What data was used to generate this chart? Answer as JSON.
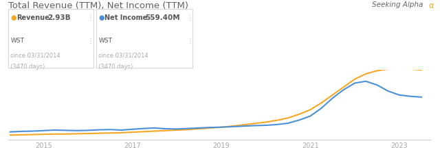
{
  "title": "Total Revenue (TTM), Net Income (TTM)",
  "seeking_alpha_text": "Seeking Alpha",
  "revenue_label": "Revenue",
  "revenue_value": "2.93B",
  "net_income_label": "Net Income",
  "net_income_value": "559.40M",
  "wst_label": "WST",
  "since_label": "since 03/31/2014",
  "days_label": "(3470 days)",
  "revenue_color": "#f5a623",
  "net_income_color": "#4a90d9",
  "background_color": "#ffffff",
  "title_color": "#606060",
  "legend_text_color": "#555555",
  "axis_color": "#cccccc",
  "tick_color": "#aaaaaa",
  "alpha_color": "#f5a623",
  "seeking_alpha_color": "#666666",
  "x_years": [
    2014.25,
    2014.5,
    2014.75,
    2015.0,
    2015.25,
    2015.5,
    2015.75,
    2016.0,
    2016.25,
    2016.5,
    2016.75,
    2017.0,
    2017.25,
    2017.5,
    2017.75,
    2018.0,
    2018.25,
    2018.5,
    2018.75,
    2019.0,
    2019.25,
    2019.5,
    2019.75,
    2020.0,
    2020.25,
    2020.5,
    2020.75,
    2021.0,
    2021.25,
    2021.5,
    2021.75,
    2022.0,
    2022.25,
    2022.5,
    2022.75,
    2023.0,
    2023.25,
    2023.5
  ],
  "revenue_data": [
    0.38,
    0.39,
    0.4,
    0.41,
    0.42,
    0.42,
    0.43,
    0.44,
    0.45,
    0.46,
    0.47,
    0.49,
    0.51,
    0.53,
    0.55,
    0.57,
    0.59,
    0.62,
    0.65,
    0.68,
    0.72,
    0.77,
    0.82,
    0.87,
    0.94,
    1.03,
    1.17,
    1.34,
    1.6,
    1.9,
    2.2,
    2.5,
    2.7,
    2.82,
    2.88,
    2.9,
    2.88,
    2.85
  ],
  "net_income_data": [
    0.5,
    0.52,
    0.53,
    0.55,
    0.57,
    0.56,
    0.55,
    0.56,
    0.58,
    0.59,
    0.57,
    0.6,
    0.63,
    0.65,
    0.62,
    0.61,
    0.63,
    0.65,
    0.67,
    0.68,
    0.7,
    0.72,
    0.74,
    0.75,
    0.78,
    0.83,
    0.95,
    1.1,
    1.4,
    1.78,
    2.1,
    2.35,
    2.42,
    2.28,
    2.05,
    1.9,
    1.85,
    1.82
  ],
  "xtick_positions": [
    2015,
    2017,
    2019,
    2021,
    2023
  ],
  "xtick_labels": [
    "2015",
    "2017",
    "2019",
    "2021",
    "2023"
  ]
}
